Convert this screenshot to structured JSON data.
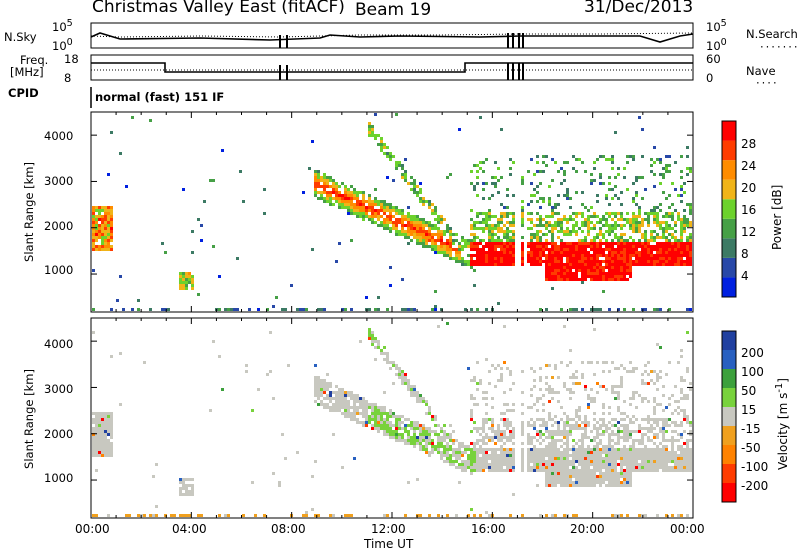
{
  "header": {
    "station": "Christmas Valley East (fitACF)",
    "beam": "Beam 19",
    "date": "31/Dec/2013"
  },
  "top_panels": {
    "nsky_label": "N.Sky",
    "nsky_ticks": [
      "10^5",
      "10^0"
    ],
    "nsearch_label": "N.Search",
    "nsearch_ticks": [
      "10^5",
      "10^0"
    ],
    "freq_label_1": "Freq.",
    "freq_label_2": "[MHz]",
    "freq_ticks": [
      "18",
      "8"
    ],
    "nave_label": "Nave",
    "nave_ticks": [
      "60",
      "0"
    ],
    "cpid_label": "CPID",
    "cpid_value": "normal (fast) 151 IF"
  },
  "chart_data": [
    {
      "type": "heatmap",
      "quantity": "Power",
      "ylabel": "Slant Range [km]",
      "yticks": [
        "1000",
        "2000",
        "3000",
        "4000"
      ],
      "ylim": [
        180,
        4500
      ],
      "colorbar_label": "Power [dB]",
      "colorbar_ticks": [
        "4",
        "8",
        "12",
        "16",
        "20",
        "24",
        "28"
      ],
      "colors": [
        "#0020e0",
        "#2848a8",
        "#3c7a64",
        "#46a046",
        "#6cd22c",
        "#f0b418",
        "#ff8c00",
        "#ff3c00",
        "#ff0000"
      ]
    },
    {
      "type": "heatmap",
      "quantity": "Velocity",
      "ylabel": "Slant Range [km]",
      "yticks": [
        "1000",
        "2000",
        "3000",
        "4000"
      ],
      "ylim": [
        180,
        4500
      ],
      "colorbar_label": "Velocity [m s^-1]",
      "colorbar_ticks": [
        "200",
        "100",
        "50",
        "15",
        "-15",
        "-50",
        "-100",
        "-200"
      ],
      "colors": [
        "#2040a0",
        "#2860c0",
        "#3ca03c",
        "#78d23c",
        "#c8c8c0",
        "#f0a01e",
        "#ff8200",
        "#ff3c00",
        "#ff0000"
      ]
    }
  ],
  "x_axis": {
    "ticks": [
      "00:00",
      "04:00",
      "08:00",
      "12:00",
      "16:00",
      "20:00",
      "00:00"
    ],
    "label": "Time UT"
  }
}
